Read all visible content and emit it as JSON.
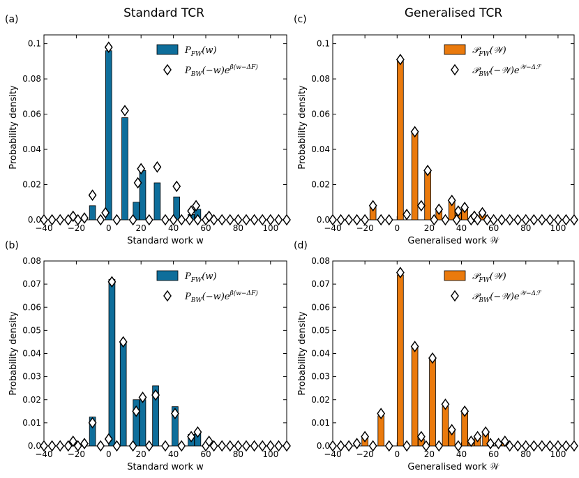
{
  "column_titles": [
    "Standard TCR",
    "Generalised TCR"
  ],
  "colors": {
    "standard_bar": "#0e6e9b",
    "generalised_bar": "#ea7a0d",
    "marker_edge": "#000000",
    "marker_fill": "#ffffff"
  },
  "chart_data": [
    {
      "panel": "(a)",
      "type": "bar",
      "title": "",
      "xlabel": "Standard work w",
      "ylabel": "Probability density",
      "xlim": [
        -40,
        110
      ],
      "ylim": [
        0,
        0.105
      ],
      "xticks": [
        -40,
        -20,
        0,
        20,
        40,
        60,
        80,
        100
      ],
      "xtick_labels": [
        "−40",
        "−20",
        "0",
        "20",
        "40",
        "60",
        "80",
        "100"
      ],
      "yticks": [
        0,
        0.02,
        0.04,
        0.06,
        0.08,
        0.1
      ],
      "ytick_labels": [
        "0.0",
        "0.02",
        "0.04",
        "0.06",
        "0.08",
        "0.1"
      ],
      "legend_position": "top-right",
      "bar_color_key": "standard_bar",
      "bar_width": 3.8,
      "series": [
        {
          "name": "P_FW(w)",
          "kind": "bar",
          "x": [
            -10,
            0,
            10,
            17,
            21,
            30,
            42,
            51,
            55
          ],
          "values": [
            0.008,
            0.096,
            0.058,
            0.01,
            0.028,
            0.021,
            0.013,
            0.003,
            0.006
          ]
        },
        {
          "name": "P_BW(−w) e^{β(w−ΔF)}",
          "kind": "marker",
          "x": [
            -40,
            -35,
            -30,
            -25,
            -22,
            -19,
            -15,
            -10,
            -5,
            -2,
            0,
            5,
            10,
            15,
            18,
            20,
            25,
            30,
            35,
            40,
            42,
            45,
            50,
            51,
            54,
            55,
            60,
            62,
            65,
            70,
            75,
            80,
            85,
            90,
            95,
            100,
            105,
            110
          ],
          "values": [
            0,
            0,
            0,
            0,
            0.002,
            0,
            0.001,
            0.014,
            0,
            0.004,
            0.098,
            0,
            0.062,
            0,
            0.021,
            0.029,
            0,
            0.03,
            0,
            0,
            0.019,
            0,
            0,
            0.005,
            0.008,
            0,
            0,
            0.002,
            0,
            0,
            0,
            0,
            0,
            0,
            0,
            0,
            0,
            0
          ]
        }
      ]
    },
    {
      "panel": "(c)",
      "type": "bar",
      "title": "",
      "xlabel": "Generalised work 𝒲",
      "ylabel": "Probability density",
      "xlim": [
        -40,
        110
      ],
      "ylim": [
        0,
        0.105
      ],
      "xticks": [
        -40,
        -20,
        0,
        20,
        40,
        60,
        80,
        100
      ],
      "xtick_labels": [
        "−40",
        "−20",
        "0",
        "20",
        "40",
        "60",
        "80",
        "100"
      ],
      "yticks": [
        0,
        0.02,
        0.04,
        0.06,
        0.08,
        0.1
      ],
      "ytick_labels": [
        "0.0",
        "0.02",
        "0.04",
        "0.06",
        "0.08",
        "0.1"
      ],
      "legend_position": "top-right",
      "bar_color_key": "generalised_bar",
      "bar_width": 3.8,
      "series": [
        {
          "name": "𝒫_FW(𝒲)",
          "kind": "bar",
          "x": [
            -15,
            2,
            11,
            19,
            26,
            34,
            38,
            42,
            48,
            53
          ],
          "values": [
            0.007,
            0.09,
            0.05,
            0.027,
            0.006,
            0.011,
            0.004,
            0.007,
            0.001,
            0.003
          ]
        },
        {
          "name": "𝒫_BW(−𝒲) e^{𝒲−Δℱ}",
          "kind": "marker",
          "x": [
            -40,
            -35,
            -30,
            -25,
            -20,
            -15,
            -10,
            -5,
            2,
            6,
            11,
            15,
            19,
            23,
            26,
            30,
            34,
            37,
            38,
            42,
            46,
            48,
            50,
            53,
            56,
            60,
            65,
            70,
            75,
            80,
            85,
            90,
            95,
            100,
            105,
            110
          ],
          "values": [
            0,
            0,
            0,
            0,
            0,
            0.008,
            0,
            0,
            0.091,
            0.003,
            0.05,
            0.008,
            0.028,
            0,
            0.006,
            0,
            0.011,
            0,
            0.005,
            0.007,
            0,
            0.002,
            0,
            0.004,
            0,
            0,
            0,
            0,
            0,
            0,
            0,
            0,
            0,
            0,
            0,
            0
          ]
        }
      ]
    },
    {
      "panel": "(b)",
      "type": "bar",
      "title": "",
      "xlabel": "Standard work w",
      "ylabel": "Probability density",
      "xlim": [
        -40,
        110
      ],
      "ylim": [
        0,
        0.08
      ],
      "xticks": [
        -40,
        -20,
        0,
        20,
        40,
        60,
        80,
        100
      ],
      "xtick_labels": [
        "−40",
        "−20",
        "0",
        "20",
        "40",
        "60",
        "80",
        "100"
      ],
      "yticks": [
        0,
        0.01,
        0.02,
        0.03,
        0.04,
        0.05,
        0.06,
        0.07,
        0.08
      ],
      "ytick_labels": [
        "0.0",
        "0.01",
        "0.02",
        "0.03",
        "0.04",
        "0.05",
        "0.06",
        "0.07",
        "0.08"
      ],
      "legend_position": "top-right",
      "bar_color_key": "standard_bar",
      "bar_width": 3.8,
      "series": [
        {
          "name": "P_FW(w)",
          "kind": "bar",
          "x": [
            -10,
            2,
            9,
            17,
            21,
            29,
            41,
            51,
            55
          ],
          "values": [
            0.0125,
            0.072,
            0.045,
            0.02,
            0.02,
            0.026,
            0.017,
            0.005,
            0.006
          ]
        },
        {
          "name": "P_BW(−w) e^{β(w−ΔF)}",
          "kind": "marker",
          "x": [
            -40,
            -35,
            -30,
            -25,
            -22,
            -19,
            -15,
            -10,
            -5,
            0,
            2,
            5,
            9,
            15,
            17,
            21,
            25,
            29,
            35,
            41,
            45,
            51,
            55,
            60,
            62,
            65,
            70,
            75,
            80,
            85,
            90,
            95,
            100,
            105,
            110
          ],
          "values": [
            0,
            0,
            0,
            0,
            0.002,
            0,
            0.001,
            0.01,
            0,
            0.003,
            0.071,
            0,
            0.045,
            0,
            0.015,
            0.021,
            0,
            0.022,
            0,
            0.014,
            0,
            0.004,
            0.006,
            0,
            0.002,
            0,
            0,
            0,
            0,
            0,
            0,
            0,
            0,
            0,
            0
          ]
        }
      ]
    },
    {
      "panel": "(d)",
      "type": "bar",
      "title": "",
      "xlabel": "Generalised work 𝒲",
      "ylabel": "Probability density",
      "xlim": [
        -40,
        110
      ],
      "ylim": [
        0,
        0.08
      ],
      "xticks": [
        -40,
        -20,
        0,
        20,
        40,
        60,
        80,
        100
      ],
      "xtick_labels": [
        "−40",
        "−20",
        "0",
        "20",
        "40",
        "60",
        "80",
        "100"
      ],
      "yticks": [
        0,
        0.01,
        0.02,
        0.03,
        0.04,
        0.05,
        0.06,
        0.07,
        0.08
      ],
      "ytick_labels": [
        "0.0",
        "0.01",
        "0.02",
        "0.03",
        "0.04",
        "0.05",
        "0.06",
        "0.07",
        "0.08"
      ],
      "legend_position": "top-right",
      "bar_color_key": "generalised_bar",
      "bar_width": 3.8,
      "series": [
        {
          "name": "𝒫_FW(𝒲)",
          "kind": "bar",
          "x": [
            -20,
            -10,
            2,
            11,
            15,
            22,
            30,
            34,
            42,
            46,
            50,
            55,
            58,
            63,
            67
          ],
          "values": [
            0.004,
            0.013,
            0.074,
            0.043,
            0.003,
            0.038,
            0.017,
            0.007,
            0.015,
            0.002,
            0.004,
            0.006,
            0.001,
            0.001,
            0.002
          ]
        },
        {
          "name": "𝒫_BW(−𝒲) e^{𝒲−Δℱ}",
          "kind": "marker",
          "x": [
            -40,
            -35,
            -30,
            -25,
            -20,
            -15,
            -10,
            -5,
            2,
            6,
            11,
            15,
            18,
            22,
            26,
            30,
            34,
            38,
            42,
            46,
            50,
            55,
            58,
            63,
            67,
            70,
            75,
            80,
            85,
            90,
            95,
            100,
            105,
            110
          ],
          "values": [
            0,
            0,
            0,
            0.001,
            0.004,
            0,
            0.014,
            0,
            0.075,
            0,
            0.043,
            0.004,
            0,
            0.038,
            0,
            0.018,
            0.007,
            0,
            0.015,
            0.002,
            0.004,
            0.006,
            0.001,
            0.001,
            0.002,
            0,
            0,
            0,
            0,
            0,
            0,
            0,
            0,
            0
          ]
        }
      ]
    }
  ]
}
